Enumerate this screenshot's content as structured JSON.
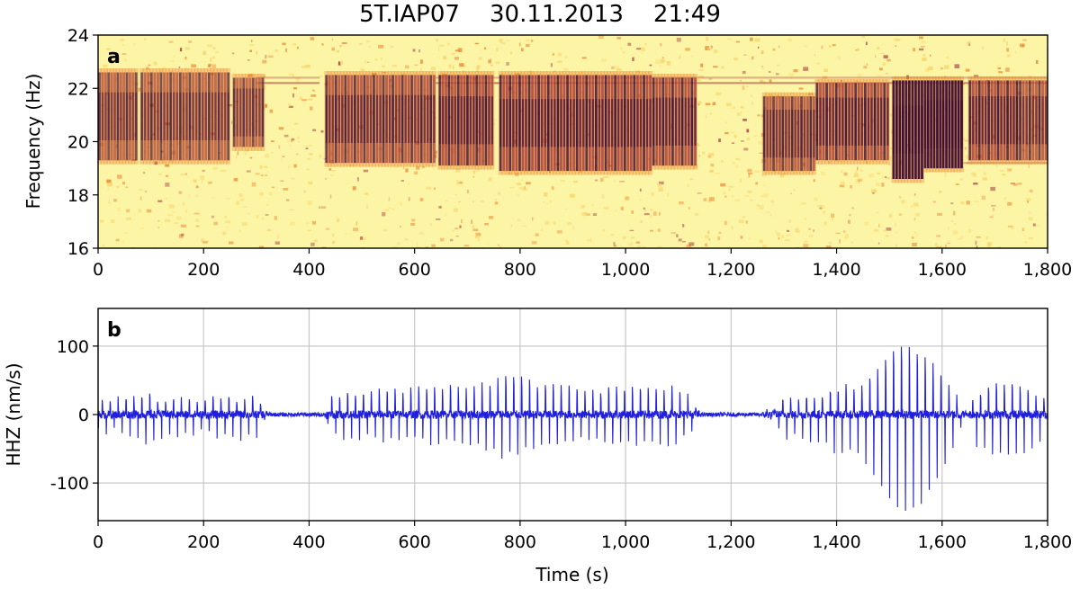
{
  "figure": {
    "title": "5T.IAP07    30.11.2013    21:49"
  },
  "chart_data": [
    {
      "type": "heatmap",
      "panel_label": "a",
      "xlabel": "",
      "ylabel": "Frequency (Hz)",
      "xlim": [
        0,
        1800
      ],
      "ylim": [
        16,
        24
      ],
      "xticks": [
        0,
        200,
        400,
        600,
        800,
        1000,
        1200,
        1400,
        1600,
        1800
      ],
      "xtick_labels": [
        "0",
        "200",
        "400",
        "600",
        "800",
        "1,000",
        "1,200",
        "1,400",
        "1,600",
        "1,800"
      ],
      "yticks": [
        16,
        18,
        20,
        22,
        24
      ],
      "ytick_labels": [
        "16",
        "18",
        "20",
        "22",
        "24"
      ],
      "colormap": "inferno_r",
      "colors": {
        "background": "#fdf5a6",
        "low": "#f7d36a",
        "mid": "#e9822c",
        "high": "#a33a3f",
        "peak": "#3a0f3b"
      },
      "pulse_segments": [
        {
          "x0": 0,
          "x1": 75,
          "fmin": 19.3,
          "fmax": 22.6,
          "amplitude": 30
        },
        {
          "x0": 80,
          "x1": 250,
          "fmin": 19.3,
          "fmax": 22.6,
          "amplitude": 32
        },
        {
          "x0": 255,
          "x1": 315,
          "fmin": 19.8,
          "fmax": 22.4,
          "amplitude": 28
        },
        {
          "x0": 430,
          "x1": 640,
          "fmin": 19.2,
          "fmax": 22.5,
          "amplitude": 45
        },
        {
          "x0": 645,
          "x1": 750,
          "fmin": 19.1,
          "fmax": 22.5,
          "amplitude": 55
        },
        {
          "x0": 760,
          "x1": 1050,
          "fmin": 18.9,
          "fmax": 22.5,
          "amplitude": 60
        },
        {
          "x0": 1050,
          "x1": 1135,
          "fmin": 19.1,
          "fmax": 22.4,
          "amplitude": 55
        },
        {
          "x0": 1260,
          "x1": 1360,
          "fmin": 18.9,
          "fmax": 21.7,
          "amplitude": 40
        },
        {
          "x0": 1360,
          "x1": 1500,
          "fmin": 19.3,
          "fmax": 22.2,
          "amplitude": 55
        },
        {
          "x0": 1505,
          "x1": 1565,
          "fmin": 18.6,
          "fmax": 22.3,
          "amplitude": 125
        },
        {
          "x0": 1565,
          "x1": 1640,
          "fmin": 19.0,
          "fmax": 22.3,
          "amplitude": 100
        },
        {
          "x0": 1650,
          "x1": 1745,
          "fmin": 19.3,
          "fmax": 22.3,
          "amplitude": 55
        },
        {
          "x0": 1745,
          "x1": 1800,
          "fmin": 19.3,
          "fmax": 22.3,
          "amplitude": 40
        }
      ],
      "tonal_lines_hz": [
        22.2,
        22.4,
        19.2
      ]
    },
    {
      "type": "line",
      "panel_label": "b",
      "xlabel": "Time (s)",
      "ylabel": "HHZ (nm/s)",
      "xlim": [
        0,
        1800
      ],
      "ylim": [
        -155,
        155
      ],
      "xticks": [
        0,
        200,
        400,
        600,
        800,
        1000,
        1200,
        1400,
        1600,
        1800
      ],
      "xtick_labels": [
        "0",
        "200",
        "400",
        "600",
        "800",
        "1,000",
        "1,200",
        "1,400",
        "1,600",
        "1,800"
      ],
      "yticks": [
        -100,
        0,
        100
      ],
      "ytick_labels": [
        "-100",
        "0",
        "100"
      ],
      "grid": true,
      "series": [
        {
          "color": "#1f1fe0",
          "noise_level": 3,
          "x": [
            0,
            60,
            90,
            150,
            180,
            240,
            280,
            310,
            320,
            430,
            440,
            600,
            650,
            700,
            740,
            770,
            790,
            830,
            900,
            1000,
            1040,
            1080,
            1120,
            1140,
            1260,
            1300,
            1360,
            1400,
            1450,
            1480,
            1510,
            1530,
            1545,
            1560,
            1590,
            1620,
            1645,
            1650,
            1660,
            1700,
            1740,
            1760,
            1780,
            1800
          ],
          "values": [
            22,
            35,
            38,
            30,
            25,
            32,
            35,
            25,
            0,
            0,
            42,
            50,
            55,
            53,
            65,
            80,
            75,
            62,
            52,
            52,
            58,
            55,
            45,
            0,
            0,
            30,
            40,
            52,
            62,
            95,
            130,
            140,
            138,
            125,
            92,
            52,
            0,
            0,
            40,
            58,
            62,
            48,
            40,
            35
          ]
        }
      ]
    }
  ]
}
